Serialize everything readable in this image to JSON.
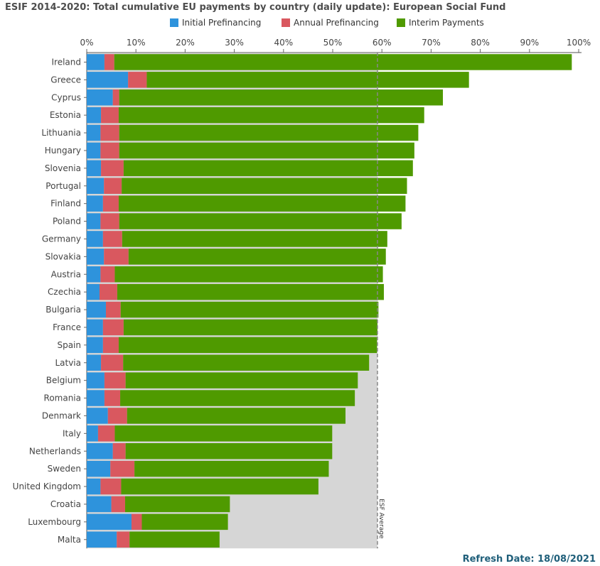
{
  "header": {
    "title": "ESIF 2014-2020: Total cumulative EU payments by country (daily update): European Social Fund"
  },
  "footer": {
    "refresh_label": "Refresh Date: 18/08/2021"
  },
  "colors": {
    "initial": "#2e93dc",
    "annual": "#d9585f",
    "interim": "#4f9a00",
    "average_area": "#d6d6d6",
    "grid": "#cccccc"
  },
  "chart_data": {
    "type": "bar",
    "orientation": "horizontal",
    "stacked": true,
    "title": "ESIF 2014-2020: Total cumulative EU payments by country (daily update): European Social Fund",
    "xlim": [
      0,
      100
    ],
    "x_ticks": [
      "0%",
      "10%",
      "20%",
      "30%",
      "40%",
      "50%",
      "60%",
      "70%",
      "80%",
      "90%",
      "100%"
    ],
    "legend_position": "top",
    "grid": true,
    "average": {
      "label": "ESF Average",
      "value": 59.1
    },
    "categories": [
      "Ireland",
      "Greece",
      "Cyprus",
      "Estonia",
      "Lithuania",
      "Hungary",
      "Slovenia",
      "Portugal",
      "Finland",
      "Poland",
      "Germany",
      "Slovakia",
      "Austria",
      "Czechia",
      "Bulgaria",
      "France",
      "Spain",
      "Latvia",
      "Belgium",
      "Romania",
      "Denmark",
      "Italy",
      "Netherlands",
      "Sweden",
      "United Kingdom",
      "Croatia",
      "Luxembourg",
      "Malta"
    ],
    "series": [
      {
        "name": "Initial Prefinancing",
        "values": [
          3.6,
          8.4,
          5.3,
          2.9,
          2.8,
          2.8,
          2.9,
          3.5,
          3.3,
          2.8,
          3.3,
          3.5,
          2.8,
          2.6,
          3.9,
          3.3,
          3.3,
          2.9,
          3.6,
          3.6,
          4.3,
          2.3,
          5.3,
          4.8,
          2.8,
          5.0,
          9.1,
          6.1
        ]
      },
      {
        "name": "Annual Prefinancing",
        "values": [
          2.0,
          3.8,
          1.3,
          3.6,
          3.8,
          3.8,
          4.6,
          3.6,
          3.2,
          3.8,
          3.9,
          5.0,
          2.9,
          3.6,
          3.0,
          4.2,
          3.2,
          4.5,
          4.3,
          3.2,
          3.9,
          3.4,
          2.6,
          4.9,
          4.2,
          2.8,
          2.1,
          2.6
        ]
      },
      {
        "name": "Interim Payments",
        "values": [
          93.0,
          65.5,
          65.8,
          62.1,
          60.8,
          60.0,
          58.8,
          58.0,
          58.3,
          57.4,
          53.9,
          52.3,
          54.5,
          54.2,
          52.4,
          51.6,
          52.5,
          50.0,
          47.2,
          47.7,
          44.4,
          44.2,
          42.0,
          39.5,
          40.1,
          21.3,
          17.5,
          18.3
        ]
      }
    ]
  }
}
